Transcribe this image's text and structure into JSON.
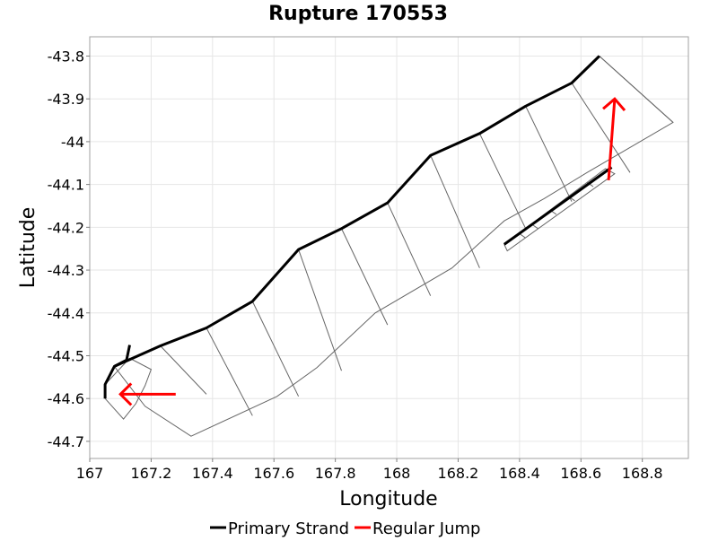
{
  "chart_data": {
    "type": "line",
    "title": "Rupture 170553",
    "xlabel": "Longitude",
    "ylabel": "Latitude",
    "xlim": [
      167.0,
      168.95
    ],
    "ylim": [
      -44.74,
      -43.755
    ],
    "x_ticks": [
      167,
      167.2,
      167.4,
      167.6,
      167.8,
      168,
      168.2,
      168.4,
      168.6,
      168.8
    ],
    "x_tick_labels": [
      "167",
      "167.2",
      "167.4",
      "167.6",
      "167.8",
      "168",
      "168.2",
      "168.4",
      "168.6",
      "168.8"
    ],
    "y_ticks": [
      -43.8,
      -43.9,
      -44,
      -44.1,
      -44.2,
      -44.3,
      -44.4,
      -44.5,
      -44.6,
      -44.7
    ],
    "y_tick_labels": [
      "-43.8",
      "-43.9",
      "-44",
      "-44.1",
      "-44.2",
      "-44.3",
      "-44.4",
      "-44.5",
      "-44.6",
      "-44.7"
    ],
    "grid": true,
    "legend_position": "bottom",
    "legend": [
      {
        "label": "Primary Strand",
        "color": "#000000"
      },
      {
        "label": "Regular Jump",
        "color": "#ff0000"
      }
    ],
    "colors": {
      "primary": "#000000",
      "jump": "#ff0000",
      "outline": "#666666"
    },
    "outlines": [
      {
        "x": [
          167.05,
          167.13,
          167.2,
          167.18,
          167.15,
          167.11,
          167.05
        ],
        "y": [
          -44.567,
          -44.506,
          -44.532,
          -44.57,
          -44.612,
          -44.648,
          -44.6
        ]
      },
      {
        "x": [
          167.08,
          167.23,
          167.38,
          167.53,
          167.68,
          167.82,
          167.97,
          168.11,
          168.27,
          168.42,
          168.57,
          168.66,
          168.9,
          168.62,
          168.48,
          168.35,
          168.18,
          167.93,
          167.74,
          167.61,
          167.33,
          167.18,
          167.08
        ],
        "y": [
          -44.525,
          -44.477,
          -44.435,
          -44.373,
          -44.252,
          -44.203,
          -44.143,
          -44.032,
          -43.981,
          -43.917,
          -43.863,
          -43.8,
          -43.955,
          -44.072,
          -44.133,
          -44.185,
          -44.295,
          -44.4,
          -44.528,
          -44.595,
          -44.688,
          -44.618,
          -44.525
        ]
      },
      {
        "x": [
          168.35,
          168.68,
          168.71,
          168.36,
          168.35
        ],
        "y": [
          -44.24,
          -44.063,
          -44.075,
          -44.255,
          -44.24
        ]
      }
    ],
    "rake_lines": [
      {
        "x": [
          167.23,
          167.38
        ],
        "y": [
          -44.477,
          -44.59
        ]
      },
      {
        "x": [
          167.38,
          167.53
        ],
        "y": [
          -44.435,
          -44.64
        ]
      },
      {
        "x": [
          167.53,
          167.68
        ],
        "y": [
          -44.373,
          -44.595
        ]
      },
      {
        "x": [
          167.68,
          167.82
        ],
        "y": [
          -44.252,
          -44.535
        ]
      },
      {
        "x": [
          167.82,
          167.97
        ],
        "y": [
          -44.203,
          -44.428
        ]
      },
      {
        "x": [
          167.97,
          168.11
        ],
        "y": [
          -44.143,
          -44.36
        ]
      },
      {
        "x": [
          168.11,
          168.27
        ],
        "y": [
          -44.032,
          -44.295
        ]
      },
      {
        "x": [
          168.27,
          168.42
        ],
        "y": [
          -43.981,
          -44.203
        ]
      },
      {
        "x": [
          168.42,
          168.57
        ],
        "y": [
          -43.917,
          -44.14
        ]
      },
      {
        "x": [
          168.57,
          168.76
        ],
        "y": [
          -43.863,
          -44.072
        ]
      },
      {
        "x": [
          168.66,
          168.9
        ],
        "y": [
          -43.8,
          -43.955
        ]
      },
      {
        "x": [
          168.4,
          168.42
        ],
        "y": [
          -44.215,
          -44.225
        ]
      },
      {
        "x": [
          168.44,
          168.46
        ],
        "y": [
          -44.193,
          -44.203
        ]
      },
      {
        "x": [
          168.5,
          168.52
        ],
        "y": [
          -44.16,
          -44.17
        ]
      },
      {
        "x": [
          168.56,
          168.58
        ],
        "y": [
          -44.128,
          -44.138
        ]
      },
      {
        "x": [
          168.62,
          168.64
        ],
        "y": [
          -44.095,
          -44.105
        ]
      }
    ],
    "series": [
      {
        "name": "Primary Strand",
        "x": [
          167.05,
          167.05,
          167.08,
          167.23,
          167.38,
          167.53,
          167.68,
          167.82,
          167.97,
          168.11,
          168.27,
          168.42,
          168.57,
          168.66
        ],
        "y": [
          -44.6,
          -44.567,
          -44.525,
          -44.477,
          -44.435,
          -44.373,
          -44.252,
          -44.203,
          -44.143,
          -44.032,
          -43.981,
          -43.917,
          -43.863,
          -43.8
        ]
      },
      {
        "name": "Primary Strand",
        "x": [
          167.08,
          167.12,
          167.13
        ],
        "y": [
          -44.525,
          -44.51,
          -44.475
        ]
      },
      {
        "name": "Primary Strand",
        "x": [
          168.35,
          168.7
        ],
        "y": [
          -44.24,
          -44.06
        ]
      }
    ],
    "arrows": [
      {
        "x": [
          167.28,
          167.1
        ],
        "y": [
          -44.59,
          -44.59
        ]
      },
      {
        "x": [
          168.69,
          168.71
        ],
        "y": [
          -44.09,
          -43.9
        ]
      }
    ]
  }
}
